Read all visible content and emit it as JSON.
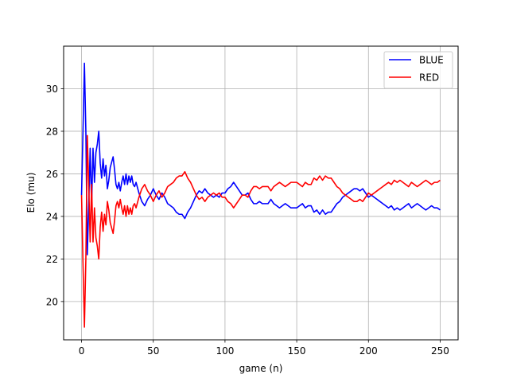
{
  "chart_data": {
    "type": "line",
    "title": "",
    "xlabel": "game (n)",
    "ylabel": "Elo (mu)",
    "xlim": [
      -12.5,
      262.5
    ],
    "ylim": [
      18.2,
      32.0
    ],
    "xticks": [
      0,
      50,
      100,
      150,
      200,
      250
    ],
    "yticks": [
      20,
      22,
      24,
      26,
      28,
      30
    ],
    "grid": true,
    "legend_position": "top-right",
    "series": [
      {
        "name": "BLUE",
        "color": "#0000ff",
        "points": [
          [
            0,
            25.0
          ],
          [
            1,
            28.0
          ],
          [
            2,
            31.2
          ],
          [
            3,
            28.0
          ],
          [
            4,
            22.2
          ],
          [
            5,
            24.5
          ],
          [
            6,
            27.2
          ],
          [
            7,
            24.5
          ],
          [
            8,
            27.2
          ],
          [
            9,
            25.6
          ],
          [
            10,
            27.0
          ],
          [
            11,
            27.4
          ],
          [
            12,
            28.0
          ],
          [
            13,
            26.5
          ],
          [
            14,
            25.8
          ],
          [
            15,
            26.7
          ],
          [
            16,
            25.9
          ],
          [
            17,
            26.4
          ],
          [
            18,
            25.3
          ],
          [
            19,
            25.7
          ],
          [
            20,
            26.3
          ],
          [
            22,
            26.8
          ],
          [
            23,
            26.2
          ],
          [
            24,
            25.5
          ],
          [
            25,
            25.3
          ],
          [
            26,
            25.6
          ],
          [
            27,
            25.2
          ],
          [
            28,
            25.6
          ],
          [
            29,
            25.9
          ],
          [
            30,
            25.5
          ],
          [
            31,
            26.0
          ],
          [
            32,
            25.5
          ],
          [
            33,
            25.9
          ],
          [
            34,
            25.6
          ],
          [
            35,
            25.9
          ],
          [
            36,
            25.5
          ],
          [
            37,
            25.4
          ],
          [
            38,
            25.6
          ],
          [
            40,
            25.1
          ],
          [
            42,
            24.7
          ],
          [
            44,
            24.5
          ],
          [
            46,
            24.8
          ],
          [
            48,
            25.0
          ],
          [
            50,
            25.3
          ],
          [
            52,
            25.0
          ],
          [
            54,
            24.8
          ],
          [
            56,
            25.1
          ],
          [
            58,
            24.9
          ],
          [
            60,
            24.6
          ],
          [
            62,
            24.5
          ],
          [
            64,
            24.4
          ],
          [
            66,
            24.2
          ],
          [
            68,
            24.1
          ],
          [
            70,
            24.1
          ],
          [
            72,
            23.9
          ],
          [
            74,
            24.2
          ],
          [
            76,
            24.4
          ],
          [
            78,
            24.7
          ],
          [
            80,
            25.0
          ],
          [
            82,
            25.2
          ],
          [
            84,
            25.1
          ],
          [
            86,
            25.3
          ],
          [
            88,
            25.1
          ],
          [
            90,
            25.0
          ],
          [
            92,
            24.9
          ],
          [
            94,
            25.0
          ],
          [
            96,
            24.9
          ],
          [
            98,
            25.1
          ],
          [
            100,
            25.1
          ],
          [
            102,
            25.3
          ],
          [
            104,
            25.4
          ],
          [
            106,
            25.6
          ],
          [
            108,
            25.4
          ],
          [
            110,
            25.2
          ],
          [
            112,
            25.0
          ],
          [
            114,
            25.0
          ],
          [
            116,
            25.1
          ],
          [
            118,
            24.8
          ],
          [
            120,
            24.6
          ],
          [
            122,
            24.6
          ],
          [
            124,
            24.7
          ],
          [
            126,
            24.6
          ],
          [
            128,
            24.6
          ],
          [
            130,
            24.6
          ],
          [
            132,
            24.8
          ],
          [
            134,
            24.6
          ],
          [
            136,
            24.5
          ],
          [
            138,
            24.4
          ],
          [
            140,
            24.5
          ],
          [
            142,
            24.6
          ],
          [
            144,
            24.5
          ],
          [
            146,
            24.4
          ],
          [
            148,
            24.4
          ],
          [
            150,
            24.4
          ],
          [
            152,
            24.5
          ],
          [
            154,
            24.6
          ],
          [
            156,
            24.4
          ],
          [
            158,
            24.5
          ],
          [
            160,
            24.5
          ],
          [
            162,
            24.2
          ],
          [
            164,
            24.3
          ],
          [
            166,
            24.1
          ],
          [
            168,
            24.3
          ],
          [
            170,
            24.1
          ],
          [
            172,
            24.2
          ],
          [
            174,
            24.2
          ],
          [
            176,
            24.4
          ],
          [
            178,
            24.6
          ],
          [
            180,
            24.7
          ],
          [
            182,
            24.9
          ],
          [
            184,
            25.0
          ],
          [
            186,
            25.1
          ],
          [
            188,
            25.2
          ],
          [
            190,
            25.3
          ],
          [
            192,
            25.3
          ],
          [
            194,
            25.2
          ],
          [
            196,
            25.3
          ],
          [
            198,
            25.1
          ],
          [
            200,
            24.9
          ],
          [
            202,
            25.0
          ],
          [
            204,
            24.9
          ],
          [
            206,
            24.8
          ],
          [
            208,
            24.7
          ],
          [
            210,
            24.6
          ],
          [
            212,
            24.5
          ],
          [
            214,
            24.4
          ],
          [
            216,
            24.5
          ],
          [
            218,
            24.3
          ],
          [
            220,
            24.4
          ],
          [
            222,
            24.3
          ],
          [
            224,
            24.4
          ],
          [
            226,
            24.5
          ],
          [
            228,
            24.6
          ],
          [
            230,
            24.4
          ],
          [
            232,
            24.5
          ],
          [
            234,
            24.6
          ],
          [
            236,
            24.5
          ],
          [
            238,
            24.4
          ],
          [
            240,
            24.3
          ],
          [
            242,
            24.4
          ],
          [
            244,
            24.5
          ],
          [
            246,
            24.4
          ],
          [
            248,
            24.4
          ],
          [
            250,
            24.3
          ]
        ]
      },
      {
        "name": "RED",
        "color": "#ff0000",
        "points": [
          [
            0,
            25.0
          ],
          [
            1,
            21.8
          ],
          [
            2,
            18.8
          ],
          [
            3,
            22.0
          ],
          [
            4,
            27.8
          ],
          [
            5,
            25.5
          ],
          [
            6,
            22.8
          ],
          [
            7,
            25.5
          ],
          [
            8,
            22.8
          ],
          [
            9,
            24.4
          ],
          [
            10,
            23.0
          ],
          [
            11,
            22.6
          ],
          [
            12,
            22.0
          ],
          [
            13,
            23.5
          ],
          [
            14,
            24.2
          ],
          [
            15,
            23.3
          ],
          [
            16,
            24.1
          ],
          [
            17,
            23.6
          ],
          [
            18,
            24.7
          ],
          [
            19,
            24.3
          ],
          [
            20,
            23.7
          ],
          [
            22,
            23.2
          ],
          [
            23,
            23.8
          ],
          [
            24,
            24.5
          ],
          [
            25,
            24.7
          ],
          [
            26,
            24.4
          ],
          [
            27,
            24.8
          ],
          [
            28,
            24.4
          ],
          [
            29,
            24.1
          ],
          [
            30,
            24.5
          ],
          [
            31,
            24.0
          ],
          [
            32,
            24.5
          ],
          [
            33,
            24.1
          ],
          [
            34,
            24.4
          ],
          [
            35,
            24.1
          ],
          [
            36,
            24.5
          ],
          [
            37,
            24.6
          ],
          [
            38,
            24.4
          ],
          [
            40,
            24.9
          ],
          [
            42,
            25.3
          ],
          [
            44,
            25.5
          ],
          [
            46,
            25.2
          ],
          [
            48,
            25.0
          ],
          [
            50,
            24.7
          ],
          [
            52,
            25.0
          ],
          [
            54,
            25.2
          ],
          [
            56,
            24.9
          ],
          [
            58,
            25.1
          ],
          [
            60,
            25.4
          ],
          [
            62,
            25.5
          ],
          [
            64,
            25.6
          ],
          [
            66,
            25.8
          ],
          [
            68,
            25.9
          ],
          [
            70,
            25.9
          ],
          [
            72,
            26.1
          ],
          [
            74,
            25.8
          ],
          [
            76,
            25.6
          ],
          [
            78,
            25.3
          ],
          [
            80,
            25.0
          ],
          [
            82,
            24.8
          ],
          [
            84,
            24.9
          ],
          [
            86,
            24.7
          ],
          [
            88,
            24.9
          ],
          [
            90,
            25.0
          ],
          [
            92,
            25.1
          ],
          [
            94,
            25.0
          ],
          [
            96,
            25.1
          ],
          [
            98,
            24.9
          ],
          [
            100,
            24.9
          ],
          [
            102,
            24.7
          ],
          [
            104,
            24.6
          ],
          [
            106,
            24.4
          ],
          [
            108,
            24.6
          ],
          [
            110,
            24.8
          ],
          [
            112,
            25.0
          ],
          [
            114,
            25.0
          ],
          [
            116,
            24.9
          ],
          [
            118,
            25.2
          ],
          [
            120,
            25.4
          ],
          [
            122,
            25.4
          ],
          [
            124,
            25.3
          ],
          [
            126,
            25.4
          ],
          [
            128,
            25.4
          ],
          [
            130,
            25.4
          ],
          [
            132,
            25.2
          ],
          [
            134,
            25.4
          ],
          [
            136,
            25.5
          ],
          [
            138,
            25.6
          ],
          [
            140,
            25.5
          ],
          [
            142,
            25.4
          ],
          [
            144,
            25.5
          ],
          [
            146,
            25.6
          ],
          [
            148,
            25.6
          ],
          [
            150,
            25.6
          ],
          [
            152,
            25.5
          ],
          [
            154,
            25.4
          ],
          [
            156,
            25.6
          ],
          [
            158,
            25.5
          ],
          [
            160,
            25.5
          ],
          [
            162,
            25.8
          ],
          [
            164,
            25.7
          ],
          [
            166,
            25.9
          ],
          [
            168,
            25.7
          ],
          [
            170,
            25.9
          ],
          [
            172,
            25.8
          ],
          [
            174,
            25.8
          ],
          [
            176,
            25.6
          ],
          [
            178,
            25.4
          ],
          [
            180,
            25.3
          ],
          [
            182,
            25.1
          ],
          [
            184,
            25.0
          ],
          [
            186,
            24.9
          ],
          [
            188,
            24.8
          ],
          [
            190,
            24.7
          ],
          [
            192,
            24.7
          ],
          [
            194,
            24.8
          ],
          [
            196,
            24.7
          ],
          [
            198,
            24.9
          ],
          [
            200,
            25.1
          ],
          [
            202,
            25.0
          ],
          [
            204,
            25.1
          ],
          [
            206,
            25.2
          ],
          [
            208,
            25.3
          ],
          [
            210,
            25.4
          ],
          [
            212,
            25.5
          ],
          [
            214,
            25.6
          ],
          [
            216,
            25.5
          ],
          [
            218,
            25.7
          ],
          [
            220,
            25.6
          ],
          [
            222,
            25.7
          ],
          [
            224,
            25.6
          ],
          [
            226,
            25.5
          ],
          [
            228,
            25.4
          ],
          [
            230,
            25.6
          ],
          [
            232,
            25.5
          ],
          [
            234,
            25.4
          ],
          [
            236,
            25.5
          ],
          [
            238,
            25.6
          ],
          [
            240,
            25.7
          ],
          [
            242,
            25.6
          ],
          [
            244,
            25.5
          ],
          [
            246,
            25.6
          ],
          [
            248,
            25.6
          ],
          [
            250,
            25.7
          ]
        ]
      }
    ]
  }
}
